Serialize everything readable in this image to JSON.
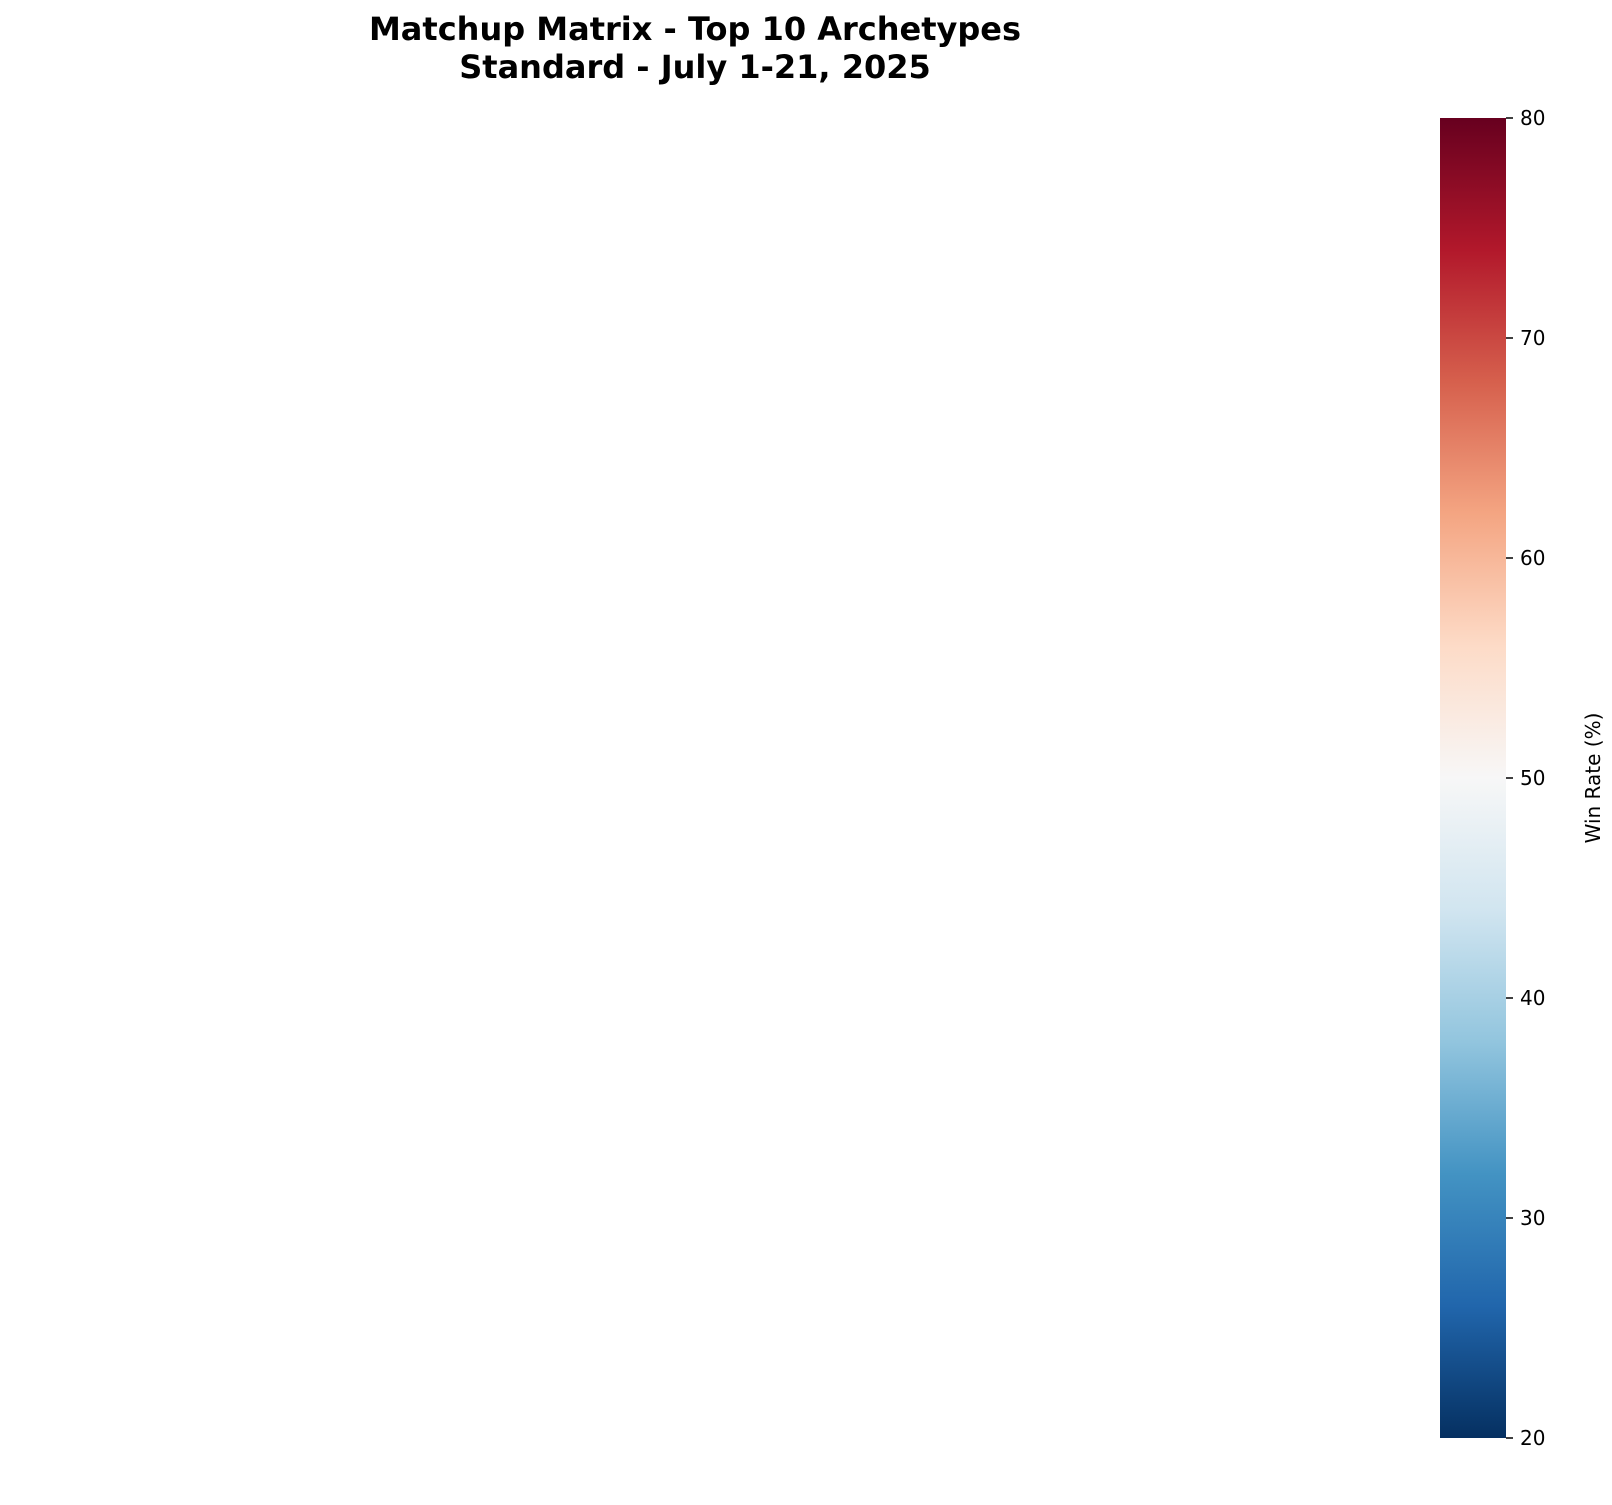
{
  "title": {
    "line1": "Matchup Matrix - Top 10 Archetypes",
    "line2": "Standard - July 1-21, 2025"
  },
  "chart_data": {
    "type": "heatmap",
    "title": "Matchup Matrix - Top 10 Archetypes\nStandard - July 1-21, 2025",
    "rows": [],
    "columns": [],
    "values": [],
    "colorbar": {
      "label": "Win Rate (%)",
      "range": [
        20,
        80
      ],
      "ticks": [
        20,
        30,
        40,
        50,
        60,
        70,
        80
      ],
      "colormap": "RdBu_r",
      "colors": [
        "#053061",
        "#2166ac",
        "#4393c3",
        "#92c5de",
        "#d1e5f0",
        "#f7f7f7",
        "#fddbc7",
        "#f4a582",
        "#d6604d",
        "#b2182b",
        "#67001f"
      ]
    },
    "grid": false
  }
}
